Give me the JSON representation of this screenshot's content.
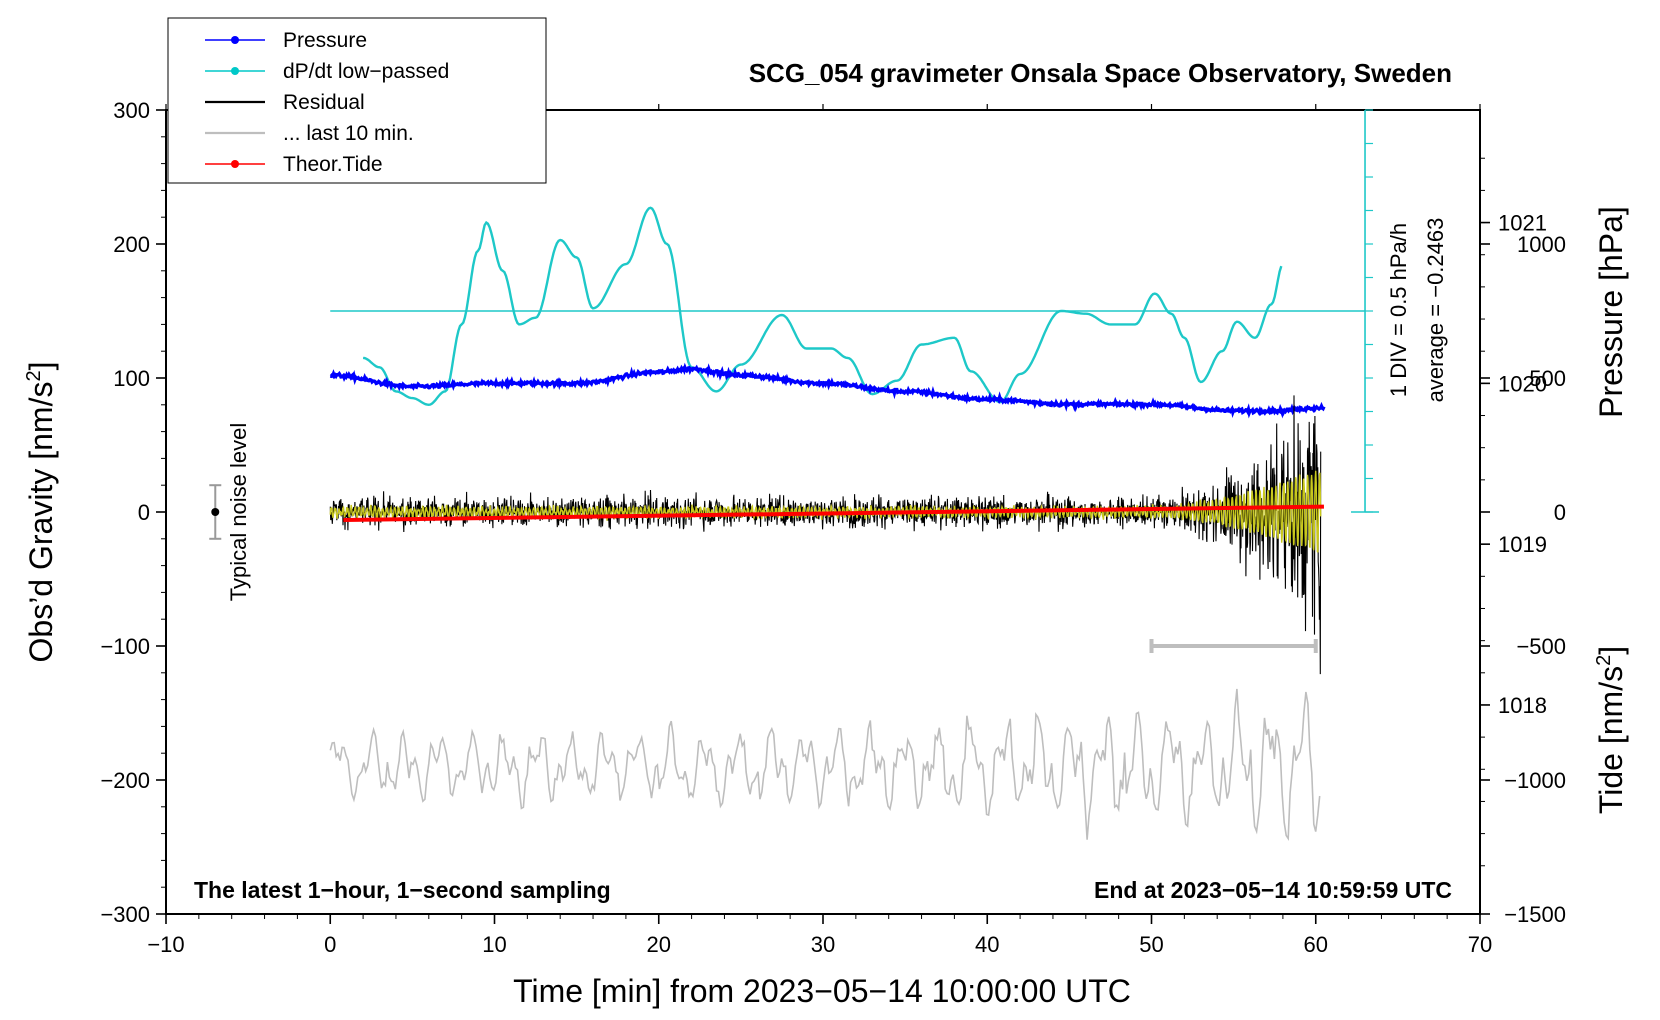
{
  "chart_data": {
    "type": "line",
    "title": "SCG_054 gravimeter Onsala Space Observatory, Sweden",
    "xlabel": "Time [min] from 2023−05−14 10:00:00 UTC",
    "ylabel_left": "Obs’d Gravity [nm/s",
    "ylabel_left_sup": "2",
    "ylabel_left_end": "]",
    "ylabel_right_pressure": "Pressure [hPa]",
    "ylabel_right_tide": "Tide [nm/s",
    "ylabel_right_tide_sup": "2",
    "ylabel_right_tide_end": "]",
    "xlim": [
      -10,
      70
    ],
    "ylim_gravity": [
      -300,
      300
    ],
    "ylim_pressure": [
      1016.7,
      1021.7
    ],
    "ylim_tide": [
      -1500,
      1500
    ],
    "x_ticks": [
      "−10",
      "0",
      "10",
      "20",
      "30",
      "40",
      "50",
      "60",
      "70"
    ],
    "x_tick_values": [
      -10,
      0,
      10,
      20,
      30,
      40,
      50,
      60,
      70
    ],
    "y_ticks_left": [
      "300",
      "200",
      "100",
      "0",
      "−100",
      "−200",
      "−300"
    ],
    "y_tick_values_left": [
      300,
      200,
      100,
      0,
      -100,
      -200,
      -300
    ],
    "y_ticks_pressure": [
      "1021",
      "1020",
      "1019",
      "1018"
    ],
    "y_tick_values_pressure": [
      1021,
      1020,
      1019,
      1018
    ],
    "y_ticks_tide": [
      "1000",
      "500",
      "0",
      "−500",
      "−1000",
      "−1500"
    ],
    "y_tick_values_tide": [
      1000,
      500,
      0,
      -500,
      -1000,
      -1500
    ],
    "legend": [
      {
        "label": "Pressure",
        "color": "#0000ff",
        "marker": true
      },
      {
        "label": "dP/dt low−passed",
        "color": "#00c8c8",
        "marker": true
      },
      {
        "label": "Residual",
        "color": "#000000",
        "marker": false
      },
      {
        "label": "... last 10 min.",
        "color": "#bebebe",
        "marker": false
      },
      {
        "label": "Theor.Tide",
        "color": "#ff0000",
        "marker": true
      }
    ],
    "legend_position": "top-left",
    "annotations": {
      "bottom_left": "The latest 1−hour, 1−second sampling",
      "bottom_right": "End at 2023−05−14 10:59:59 UTC",
      "noise_label": "Typical noise level",
      "div_label": "1 DIV = 0.5 hPa/h",
      "average_label": "average = −0.2463"
    },
    "colors": {
      "pressure": "#0000ff",
      "dpdt": "#1ec8c8",
      "residual": "#000000",
      "last10": "#bebebe",
      "yellow": "#c8c81e",
      "tide": "#ff0000"
    },
    "series": [
      {
        "name": "Pressure",
        "unit": "hPa",
        "x": [
          0,
          5,
          10,
          15,
          20,
          22,
          25,
          30,
          35,
          40,
          45,
          50,
          55,
          57.5,
          60.5
        ],
        "values": [
          1020.05,
          1019.98,
          1020.0,
          1020.0,
          1020.07,
          1020.09,
          1020.05,
          1020.0,
          1019.95,
          1019.9,
          1019.87,
          1019.87,
          1019.83,
          1019.83,
          1019.85
        ]
      },
      {
        "name": "dP/dt low-passed",
        "unit": "gravity-axis units",
        "x": [
          2,
          3,
          4,
          5,
          6,
          7,
          8,
          9,
          9.5,
          10.5,
          11.5,
          12.5,
          14,
          15,
          16,
          18,
          19.5,
          20.5,
          22,
          23.5,
          25,
          27.5,
          29,
          30.5,
          31.5,
          33,
          34.5,
          36,
          38,
          39,
          40.8,
          42,
          44.5,
          46,
          47.5,
          49,
          50.2,
          51.2,
          52,
          53,
          54.3,
          55.2,
          56.3,
          57.3,
          58
        ],
        "values": [
          115,
          108,
          90,
          85,
          80,
          90,
          140,
          195,
          216,
          180,
          140,
          145,
          203,
          190,
          152,
          185,
          227,
          200,
          108,
          90,
          110,
          147,
          122,
          122,
          115,
          88,
          98,
          125,
          130,
          105,
          82,
          103,
          150,
          148,
          140,
          140,
          163,
          148,
          130,
          97,
          120,
          142,
          130,
          155,
          185
        ]
      },
      {
        "name": "Theor.Tide",
        "unit": "nm/s2",
        "x": [
          0.8,
          60.5
        ],
        "values": [
          -30,
          20
        ]
      }
    ],
    "noise_level": {
      "x": -7,
      "center": 0,
      "half_range": 20
    },
    "last10_range_bar": {
      "x_start": 50,
      "x_end": 60,
      "y": -100
    },
    "pressure_scale_bar": {
      "x": 63,
      "y_top": 300,
      "y_bottom": 0,
      "tick_hpa": 0.5
    },
    "dpdt_average_line": {
      "y": 150,
      "x_start": 0,
      "x_end": 63
    }
  }
}
